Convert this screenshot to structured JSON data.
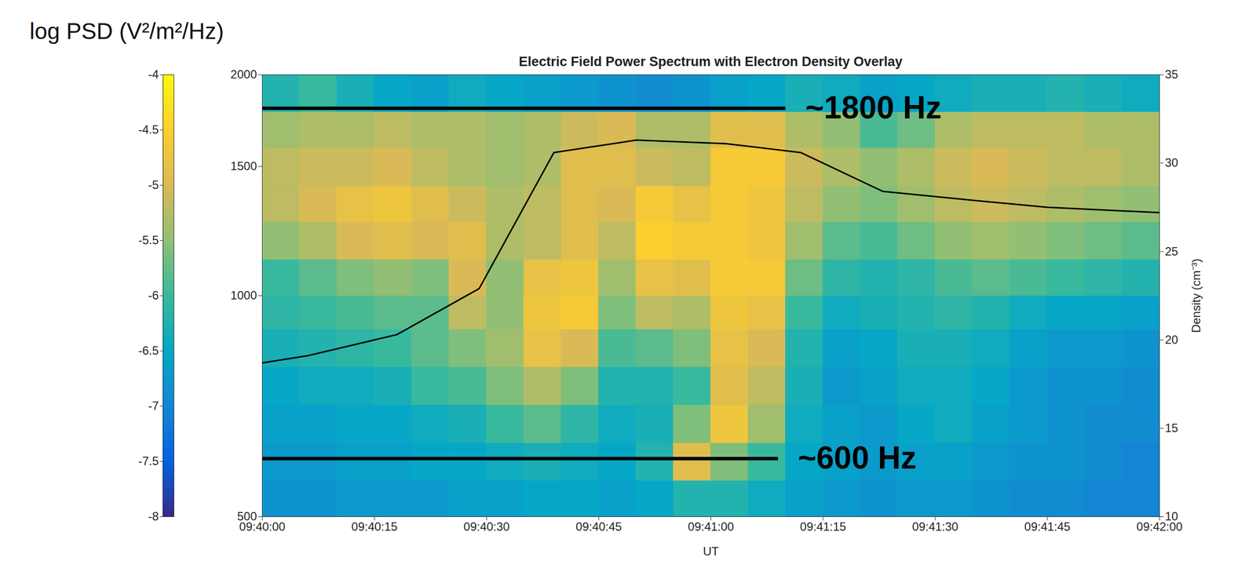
{
  "chart_data": {
    "type": "heatmap",
    "title": "Electric Field Power Spectrum with Electron Density Overlay",
    "x_label": "UT",
    "xlim": [
      "09:40:00",
      "09:42:00"
    ],
    "xticks": [
      "09:40:00",
      "09:40:15",
      "09:40:30",
      "09:40:45",
      "09:41:00",
      "09:41:15",
      "09:41:30",
      "09:41:45",
      "09:42:00"
    ],
    "ylim": [
      500,
      2000
    ],
    "yticks": [
      500,
      1000,
      1500,
      2000
    ],
    "log": "y",
    "y2lim": [
      10,
      35
    ],
    "y2ticks": [
      10,
      15,
      20,
      25,
      30,
      35
    ],
    "y2_label": "Density (cm⁻³)",
    "heatmap": {
      "x_edges": [
        "09:40:00",
        "09:40:05",
        "09:40:10",
        "09:40:15",
        "09:40:20",
        "09:40:25",
        "09:40:30",
        "09:40:35",
        "09:40:40",
        "09:40:45",
        "09:40:50",
        "09:40:55",
        "09:41:00",
        "09:41:05",
        "09:41:10",
        "09:41:15",
        "09:41:20",
        "09:41:25",
        "09:41:30",
        "09:41:35",
        "09:41:40",
        "09:41:45",
        "09:41:50",
        "09:41:55",
        "09:42:00"
      ],
      "y_edges": [
        500,
        560,
        630,
        710,
        800,
        900,
        1000,
        1120,
        1260,
        1410,
        1590,
        1780,
        2000
      ],
      "values": [
        [
          -6.8,
          -6.8,
          -6.7,
          -6.7,
          -6.7,
          -6.6,
          -6.6,
          -6.5,
          -6.5,
          -6.6,
          -6.5,
          -6.2,
          -6.2,
          -6.4,
          -6.6,
          -6.7,
          -6.8,
          -6.7,
          -6.7,
          -6.8,
          -6.9,
          -6.9,
          -7.0,
          -7.0
        ],
        [
          -6.7,
          -6.7,
          -6.6,
          -6.6,
          -6.5,
          -6.5,
          -6.4,
          -6.3,
          -6.4,
          -6.5,
          -6.2,
          -4.9,
          -5.6,
          -6.0,
          -6.5,
          -6.6,
          -6.7,
          -6.6,
          -6.6,
          -6.7,
          -6.8,
          -6.8,
          -6.9,
          -7.0
        ],
        [
          -6.6,
          -6.6,
          -6.5,
          -6.5,
          -6.4,
          -6.3,
          -6.0,
          -5.8,
          -6.1,
          -6.4,
          -6.3,
          -5.6,
          -4.7,
          -5.4,
          -6.4,
          -6.6,
          -6.7,
          -6.5,
          -6.4,
          -6.6,
          -6.7,
          -6.8,
          -6.9,
          -6.9
        ],
        [
          -6.5,
          -6.4,
          -6.4,
          -6.3,
          -6.0,
          -5.9,
          -5.6,
          -5.3,
          -5.6,
          -6.2,
          -6.2,
          -6.0,
          -4.9,
          -5.2,
          -6.3,
          -6.7,
          -6.6,
          -6.4,
          -6.4,
          -6.5,
          -6.7,
          -6.8,
          -6.8,
          -6.9
        ],
        [
          -6.3,
          -6.2,
          -6.1,
          -6.0,
          -5.8,
          -5.6,
          -5.4,
          -4.8,
          -5.0,
          -5.9,
          -5.8,
          -5.6,
          -4.8,
          -5.0,
          -6.2,
          -6.6,
          -6.5,
          -6.3,
          -6.3,
          -6.4,
          -6.6,
          -6.7,
          -6.7,
          -6.8
        ],
        [
          -6.1,
          -6.0,
          -5.9,
          -5.8,
          -5.8,
          -5.2,
          -5.5,
          -4.7,
          -4.6,
          -5.6,
          -5.2,
          -5.3,
          -4.7,
          -4.8,
          -6.0,
          -6.4,
          -6.3,
          -6.2,
          -6.1,
          -6.2,
          -6.4,
          -6.5,
          -6.5,
          -6.6
        ],
        [
          -6.0,
          -5.8,
          -5.6,
          -5.5,
          -5.6,
          -5.0,
          -5.5,
          -4.8,
          -4.7,
          -5.4,
          -4.8,
          -4.9,
          -4.6,
          -4.6,
          -5.7,
          -6.1,
          -6.2,
          -6.1,
          -5.9,
          -5.8,
          -5.9,
          -6.0,
          -6.1,
          -6.2
        ],
        [
          -5.5,
          -5.3,
          -5.0,
          -4.9,
          -5.0,
          -4.9,
          -5.3,
          -5.2,
          -4.9,
          -5.2,
          -4.5,
          -4.6,
          -4.6,
          -4.7,
          -5.4,
          -5.8,
          -5.9,
          -5.7,
          -5.5,
          -5.4,
          -5.5,
          -5.6,
          -5.7,
          -5.8
        ],
        [
          -5.2,
          -5.0,
          -4.8,
          -4.7,
          -4.9,
          -5.1,
          -5.3,
          -5.2,
          -4.9,
          -5.0,
          -4.6,
          -4.8,
          -4.6,
          -4.7,
          -5.2,
          -5.5,
          -5.6,
          -5.4,
          -5.2,
          -5.1,
          -5.2,
          -5.3,
          -5.4,
          -5.5
        ],
        [
          -5.2,
          -5.1,
          -5.1,
          -5.0,
          -5.2,
          -5.3,
          -5.4,
          -5.3,
          -4.9,
          -4.9,
          -5.1,
          -5.2,
          -4.6,
          -4.6,
          -5.1,
          -5.3,
          -5.5,
          -5.3,
          -5.1,
          -5.0,
          -5.1,
          -5.2,
          -5.2,
          -5.3
        ],
        [
          -5.4,
          -5.3,
          -5.3,
          -5.2,
          -5.3,
          -5.3,
          -5.4,
          -5.3,
          -5.1,
          -5.0,
          -5.3,
          -5.3,
          -4.9,
          -4.9,
          -5.3,
          -5.5,
          -5.9,
          -5.7,
          -5.3,
          -5.2,
          -5.2,
          -5.2,
          -5.3,
          -5.3
        ],
        [
          -6.2,
          -6.0,
          -6.3,
          -6.5,
          -6.6,
          -6.4,
          -6.5,
          -6.6,
          -6.7,
          -6.8,
          -6.9,
          -6.8,
          -6.6,
          -6.5,
          -6.3,
          -6.4,
          -6.6,
          -6.5,
          -6.4,
          -6.3,
          -6.3,
          -6.2,
          -6.3,
          -6.4
        ]
      ]
    },
    "colorbar": {
      "label": "log PSD (V²/m²/Hz)",
      "range": [
        -8,
        -4
      ],
      "ticks": [
        -4,
        -4.5,
        -5,
        -5.5,
        -6,
        -6.5,
        -7,
        -7.5,
        -8
      ]
    },
    "series": [
      {
        "type": "line",
        "axis": "y2",
        "color": "#000000",
        "x": [
          "09:40:00",
          "09:40:06",
          "09:40:18",
          "09:40:29",
          "09:40:39",
          "09:40:50",
          "09:41:02",
          "09:41:12",
          "09:41:23",
          "09:41:35",
          "09:41:45",
          "09:42:00"
        ],
        "values": [
          18.7,
          19.1,
          20.3,
          22.9,
          30.6,
          31.3,
          31.1,
          30.6,
          28.4,
          27.9,
          27.5,
          27.2
        ]
      }
    ],
    "annotations": [
      {
        "text": "~1800 Hz",
        "y": 1800,
        "x_start": "09:40:00",
        "x_end": "09:41:10"
      },
      {
        "text": "~600 Hz",
        "y": 600,
        "x_start": "09:40:00",
        "x_end": "09:41:09"
      }
    ]
  }
}
